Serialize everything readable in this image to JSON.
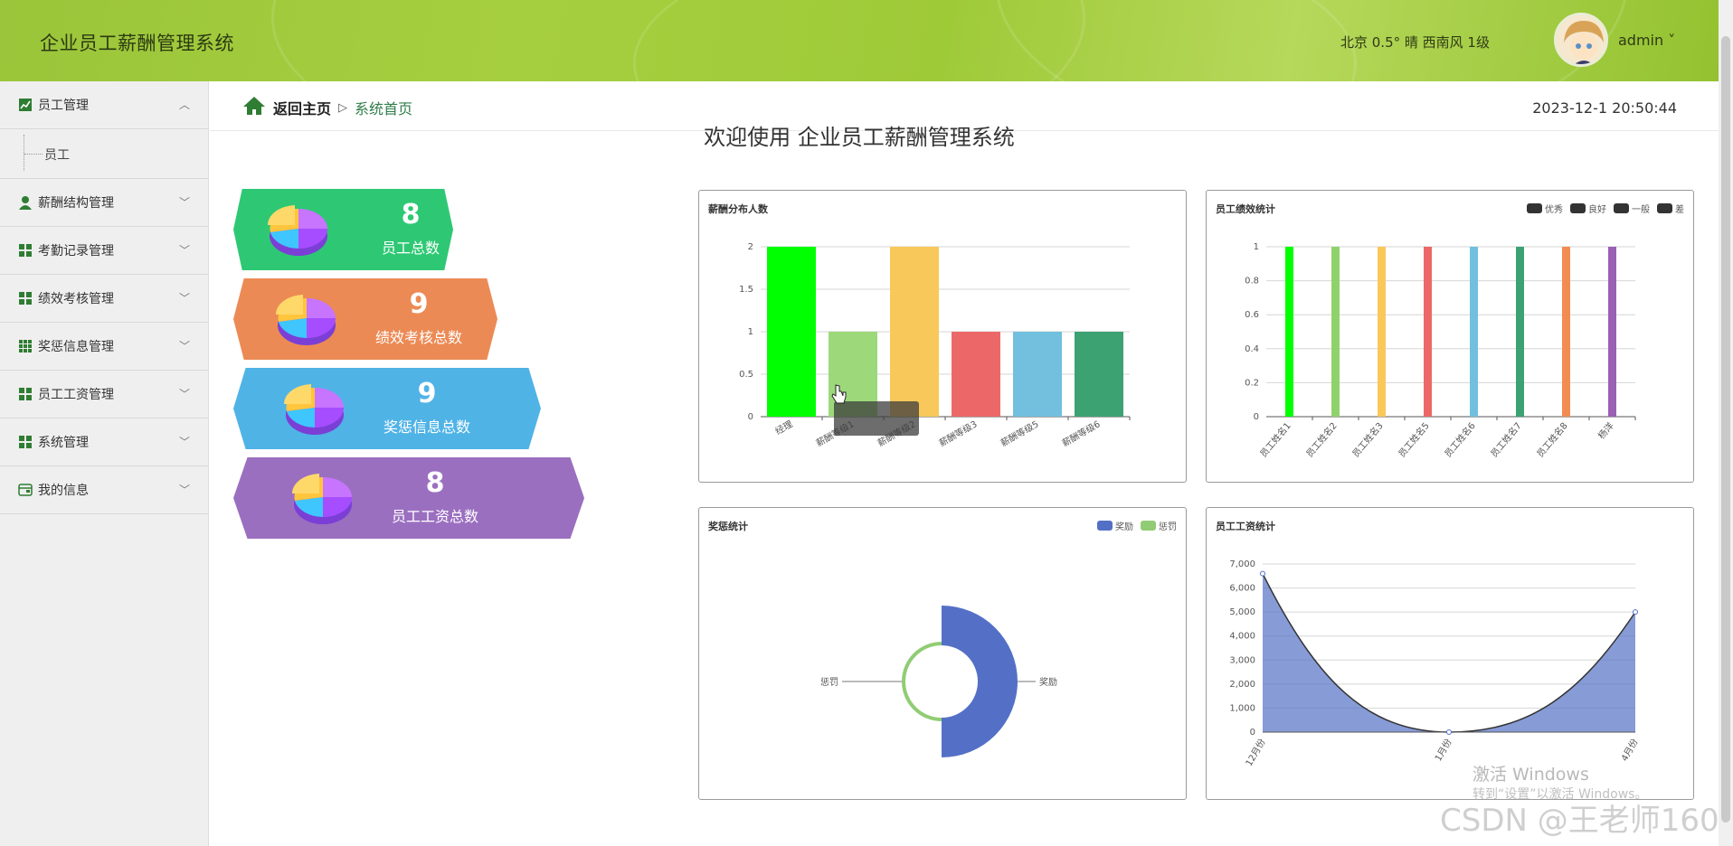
{
  "header": {
    "app_title": "企业员工薪酬管理系统",
    "weather": "北京  0.5°  晴  西南风  1级",
    "user": "admin ˅"
  },
  "sidebar": {
    "items": [
      {
        "label": "员工管理",
        "icon": "chart-icon",
        "expanded": true
      },
      {
        "label": "员工",
        "sub": true
      },
      {
        "label": "薪酬结构管理",
        "icon": "user-icon"
      },
      {
        "label": "考勤记录管理",
        "icon": "grid-icon"
      },
      {
        "label": "绩效考核管理",
        "icon": "grid-icon"
      },
      {
        "label": "奖惩信息管理",
        "icon": "apps-icon"
      },
      {
        "label": "员工工资管理",
        "icon": "grid-icon"
      },
      {
        "label": "系统管理",
        "icon": "grid-icon"
      },
      {
        "label": "我的信息",
        "icon": "card-icon"
      }
    ]
  },
  "topbar": {
    "home": "返回主页",
    "separator": "▷",
    "current": "系统首页",
    "datetime": "2023-12-1 20:50:44"
  },
  "welcome": "欢迎使用 企业员工薪酬管理系统",
  "stats": [
    {
      "value": "8",
      "label": "员工总数",
      "color": "#2ec874"
    },
    {
      "value": "9",
      "label": "绩效考核总数",
      "color": "#ec8a55"
    },
    {
      "value": "9",
      "label": "奖惩信息总数",
      "color": "#50b3e6"
    },
    {
      "value": "8",
      "label": "员工工资总数",
      "color": "#9b6fc0"
    }
  ],
  "chart_data": [
    {
      "type": "bar",
      "title": "薪酬分布人数",
      "categories": [
        "经理",
        "薪酬等级1",
        "薪酬等级2",
        "薪酬等级3",
        "薪酬等级5",
        "薪酬等级6"
      ],
      "values": [
        2,
        1,
        2,
        1,
        1,
        1
      ],
      "colors": [
        "#00ff00",
        "#9dd97a",
        "#f9c85a",
        "#ec6868",
        "#72bfde",
        "#3ca272"
      ],
      "ylim": [
        0,
        2
      ],
      "yticks": [
        "0",
        "0.5",
        "1",
        "1.5",
        "2"
      ]
    },
    {
      "type": "bar",
      "title": "员工绩效统计",
      "legend": [
        "优秀",
        "良好",
        "一般",
        "差"
      ],
      "categories": [
        "员工姓名1",
        "员工姓名2",
        "员工姓名3",
        "员工姓名5",
        "员工姓名6",
        "员工姓名7",
        "员工姓名8",
        "杨洋"
      ],
      "values": [
        1,
        1,
        1,
        1,
        1,
        1,
        1,
        1
      ],
      "colors": [
        "#00ff00",
        "#8fd26b",
        "#f9c85a",
        "#ec6868",
        "#72bfde",
        "#3ca272",
        "#f28c50",
        "#9a60b4"
      ],
      "ylim": [
        0,
        1
      ],
      "yticks": [
        "0",
        "0.2",
        "0.4",
        "0.6",
        "0.8",
        "1"
      ]
    },
    {
      "type": "pie",
      "title": "奖惩统计",
      "legend": [
        "奖励",
        "惩罚"
      ],
      "series": [
        {
          "name": "奖励",
          "value": 1,
          "color": "#5470c6"
        },
        {
          "name": "惩罚",
          "value": 1,
          "color": "#91cc75"
        }
      ]
    },
    {
      "type": "area",
      "title": "员工工资统计",
      "categories": [
        "12月份",
        "1月份",
        "4月份"
      ],
      "values": [
        6600,
        0,
        5000
      ],
      "ylim": [
        0,
        7000
      ],
      "yticks": [
        "0",
        "1,000",
        "2,000",
        "3,000",
        "4,000",
        "5,000",
        "6,000",
        "7,000"
      ],
      "color": "#5470c6"
    }
  ],
  "watermark": {
    "line1": "激活 Windows",
    "line2": "转到“设置”以激活 Windows。",
    "csdn": "CSDN @王老师160"
  }
}
